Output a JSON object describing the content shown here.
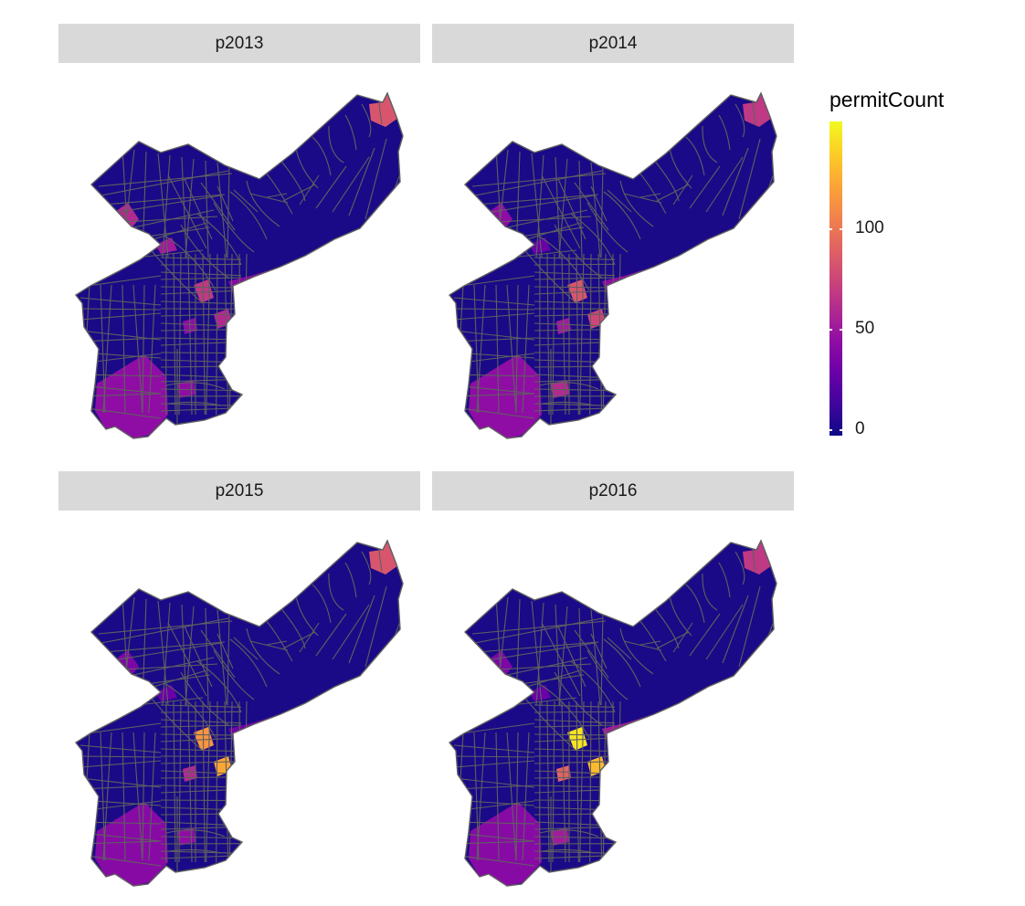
{
  "panels": [
    {
      "label": "p2013",
      "highlights": [
        {
          "t": 0.55,
          "shape": "ne"
        },
        {
          "t": 0.4,
          "shape": "nw1"
        },
        {
          "t": 0.35,
          "shape": "nw2"
        },
        {
          "t": 0.45,
          "shape": "c1"
        },
        {
          "t": 0.4,
          "shape": "c2"
        },
        {
          "t": 0.3,
          "shape": "c3"
        },
        {
          "t": 0.28,
          "shape": "river"
        },
        {
          "t": 0.3,
          "shape": "sw"
        },
        {
          "t": 0.3,
          "shape": "s1"
        }
      ]
    },
    {
      "label": "p2014",
      "highlights": [
        {
          "t": 0.45,
          "shape": "ne"
        },
        {
          "t": 0.3,
          "shape": "nw1"
        },
        {
          "t": 0.2,
          "shape": "nw2"
        },
        {
          "t": 0.55,
          "shape": "c1"
        },
        {
          "t": 0.5,
          "shape": "c2"
        },
        {
          "t": 0.35,
          "shape": "c3"
        },
        {
          "t": 0.3,
          "shape": "river"
        },
        {
          "t": 0.3,
          "shape": "sw"
        },
        {
          "t": 0.4,
          "shape": "s1"
        }
      ]
    },
    {
      "label": "p2015",
      "highlights": [
        {
          "t": 0.55,
          "shape": "ne"
        },
        {
          "t": 0.25,
          "shape": "nw1"
        },
        {
          "t": 0.2,
          "shape": "nw2"
        },
        {
          "t": 0.75,
          "shape": "c1"
        },
        {
          "t": 0.8,
          "shape": "c2"
        },
        {
          "t": 0.4,
          "shape": "c3"
        },
        {
          "t": 0.22,
          "shape": "river"
        },
        {
          "t": 0.28,
          "shape": "sw"
        },
        {
          "t": 0.3,
          "shape": "s1"
        }
      ]
    },
    {
      "label": "p2016",
      "highlights": [
        {
          "t": 0.45,
          "shape": "ne"
        },
        {
          "t": 0.25,
          "shape": "nw1"
        },
        {
          "t": 0.2,
          "shape": "nw2"
        },
        {
          "t": 0.95,
          "shape": "c1"
        },
        {
          "t": 0.85,
          "shape": "c2"
        },
        {
          "t": 0.6,
          "shape": "c3"
        },
        {
          "t": 0.35,
          "shape": "river"
        },
        {
          "t": 0.28,
          "shape": "sw"
        },
        {
          "t": 0.35,
          "shape": "s1"
        }
      ]
    }
  ],
  "legend": {
    "title": "permitCount",
    "min": 0,
    "max": 150,
    "ticks": [
      {
        "value": 0,
        "label": "0"
      },
      {
        "value": 50,
        "label": "50"
      },
      {
        "value": 100,
        "label": "100"
      }
    ],
    "palette": [
      "#0d0887",
      "#41049d",
      "#6a00a8",
      "#8f0da4",
      "#b12a90",
      "#cc4778",
      "#e16462",
      "#f2844b",
      "#fca636",
      "#fcce25",
      "#f0f921"
    ]
  },
  "colors": {
    "base_fill": "#1a0a87",
    "tract_border": "#606060",
    "strip_bg": "#d9d9d9"
  }
}
